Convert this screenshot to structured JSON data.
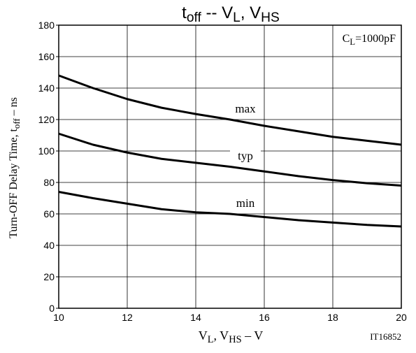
{
  "chart_data": {
    "type": "line",
    "title": [
      "t",
      "off",
      " -- V",
      "L",
      ", V",
      "HS"
    ],
    "x_label": [
      "V",
      "L",
      ", V",
      "HS",
      " – V"
    ],
    "y_label": [
      "Turn-OFF Delay Time, t",
      "off",
      " – ns"
    ],
    "annotation": [
      "C",
      "L",
      "=1000pF"
    ],
    "figure_id": "IT16852",
    "x": [
      10,
      11,
      12,
      13,
      14,
      15,
      16,
      17,
      18,
      19,
      20
    ],
    "series": [
      {
        "name": "max",
        "color": "#000000",
        "values": [
          148,
          140,
          133,
          127.5,
          123.5,
          120,
          116,
          112.5,
          109,
          106.5,
          104
        ]
      },
      {
        "name": "typ",
        "color": "#000000",
        "values": [
          111,
          104,
          99,
          95,
          92.5,
          90,
          87,
          84,
          81.5,
          79.5,
          78
        ]
      },
      {
        "name": "min",
        "color": "#000000",
        "values": [
          74,
          70,
          66.5,
          63,
          61,
          60,
          58,
          56,
          54.5,
          53,
          52
        ]
      }
    ],
    "xlim": [
      10,
      20
    ],
    "xticks": [
      10,
      12,
      14,
      16,
      18,
      20
    ],
    "ylim": [
      0,
      180
    ],
    "yticks": [
      0,
      20,
      40,
      60,
      80,
      100,
      120,
      140,
      160,
      180
    ],
    "grid": true
  }
}
